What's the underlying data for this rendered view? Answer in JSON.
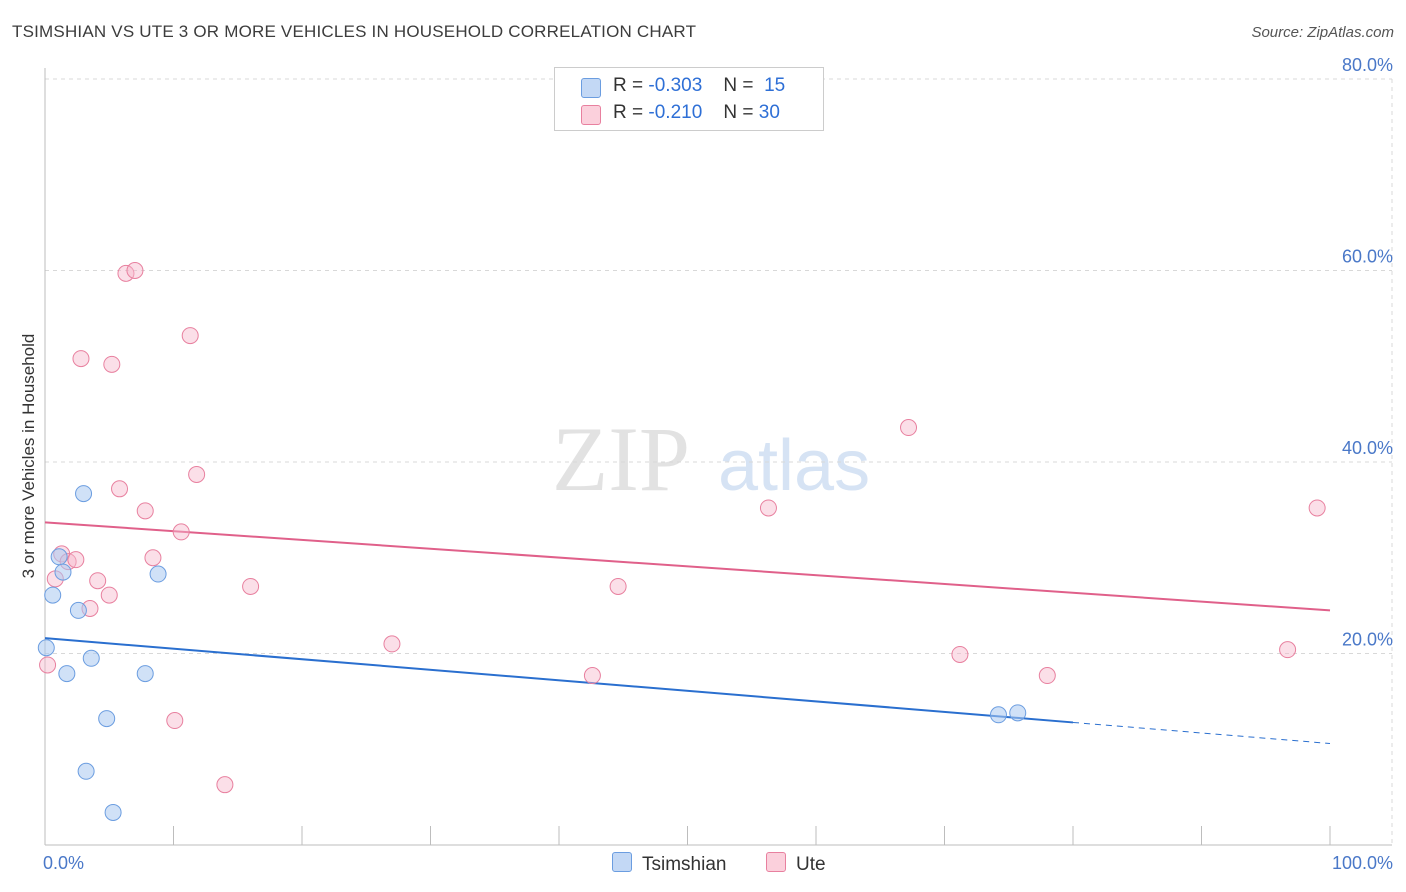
{
  "header": {
    "title": "TSIMSHIAN VS UTE 3 OR MORE VEHICLES IN HOUSEHOLD CORRELATION CHART",
    "source": "Source: ZipAtlas.com"
  },
  "legend": {
    "rows": [
      {
        "r_label": "R =",
        "r_value": "-0.303",
        "n_label": "N =",
        "n_value": "15"
      },
      {
        "r_label": "R =",
        "r_value": "-0.210",
        "n_label": "N =",
        "n_value": "30"
      }
    ]
  },
  "bottom_legend": {
    "series1": "Tsimshian",
    "series2": "Ute"
  },
  "watermark": {
    "zip": "ZIP",
    "atlas": "atlas"
  },
  "colors": {
    "tsimshian_fill": "#a9c8f0",
    "tsimshian_stroke": "#6b9de0",
    "tsimshian_line": "#2a6fcf",
    "ute_fill": "#f7b8cb",
    "ute_stroke": "#e8809f",
    "ute_line": "#e0608a",
    "tick": "#4a78c8",
    "grid": "#d8d8d8"
  },
  "chart_data": {
    "type": "scatter",
    "title": "TSIMSHIAN VS UTE 3 OR MORE VEHICLES IN HOUSEHOLD CORRELATION CHART",
    "xlabel": "",
    "ylabel": "3 or more Vehicles in Household",
    "xlim": [
      0,
      100
    ],
    "ylim": [
      0,
      80
    ],
    "x_tick_labels": [
      "0.0%",
      "100.0%"
    ],
    "y_ticks": [
      {
        "value": 20,
        "label": "20.0%"
      },
      {
        "value": 40,
        "label": "40.0%"
      },
      {
        "value": 60,
        "label": "60.0%"
      },
      {
        "value": 80,
        "label": "80.0%"
      }
    ],
    "series": [
      {
        "name": "Tsimshian",
        "r": -0.303,
        "n": 15,
        "points": [
          [
            0.1,
            20.6
          ],
          [
            0.6,
            26.1
          ],
          [
            1.1,
            30.1
          ],
          [
            1.4,
            28.5
          ],
          [
            1.7,
            17.9
          ],
          [
            2.6,
            24.5
          ],
          [
            3.0,
            36.7
          ],
          [
            3.2,
            7.7
          ],
          [
            3.6,
            19.5
          ],
          [
            4.8,
            13.2
          ],
          [
            5.3,
            3.4
          ],
          [
            7.8,
            17.9
          ],
          [
            8.8,
            28.3
          ],
          [
            74.2,
            13.6
          ],
          [
            75.7,
            13.8
          ]
        ],
        "trend": {
          "x0": 0,
          "y0": 21.6,
          "x1": 80,
          "y1": 12.8,
          "dash_to_x": 100,
          "dash_to_y": 10.6
        }
      },
      {
        "name": "Ute",
        "r": -0.21,
        "n": 30,
        "points": [
          [
            0.2,
            18.8
          ],
          [
            0.8,
            27.8
          ],
          [
            1.3,
            30.4
          ],
          [
            1.8,
            29.6
          ],
          [
            2.4,
            29.8
          ],
          [
            2.8,
            50.8
          ],
          [
            3.5,
            24.7
          ],
          [
            4.1,
            27.6
          ],
          [
            5.0,
            26.1
          ],
          [
            5.2,
            50.2
          ],
          [
            5.8,
            37.2
          ],
          [
            6.3,
            59.7
          ],
          [
            7.0,
            60.0
          ],
          [
            7.8,
            34.9
          ],
          [
            8.4,
            30.0
          ],
          [
            10.1,
            13.0
          ],
          [
            10.6,
            32.7
          ],
          [
            11.3,
            53.2
          ],
          [
            11.8,
            38.7
          ],
          [
            14.0,
            6.3
          ],
          [
            16.0,
            27.0
          ],
          [
            27.0,
            21.0
          ],
          [
            42.6,
            17.7
          ],
          [
            44.6,
            27.0
          ],
          [
            56.3,
            35.2
          ],
          [
            67.2,
            43.6
          ],
          [
            71.2,
            19.9
          ],
          [
            78.0,
            17.7
          ],
          [
            96.7,
            20.4
          ],
          [
            99.0,
            35.2
          ]
        ],
        "trend": {
          "x0": 0,
          "y0": 33.7,
          "x1": 100,
          "y1": 24.5
        }
      }
    ]
  }
}
